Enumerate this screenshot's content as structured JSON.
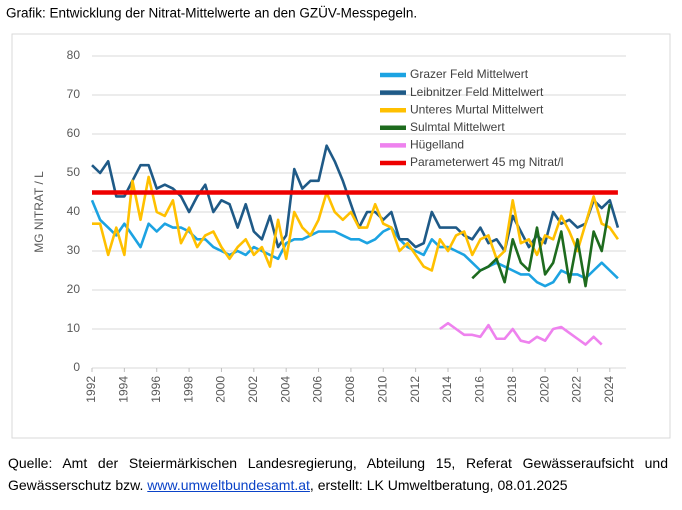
{
  "heading": "Grafik: Entwicklung der Nitrat-Mittelwerte an den GZÜV-Messpegeln.",
  "chart_data": {
    "type": "line",
    "ylabel": "MG NITRAT / L",
    "x": [
      1992,
      1992.5,
      1993,
      1993.5,
      1994,
      1994.5,
      1995,
      1995.5,
      1996,
      1996.5,
      1997,
      1997.5,
      1998,
      1998.5,
      1999,
      1999.5,
      2000,
      2000.5,
      2001,
      2001.5,
      2002,
      2002.5,
      2003,
      2003.5,
      2004,
      2004.5,
      2005,
      2005.5,
      2006,
      2006.5,
      2007,
      2007.5,
      2008,
      2008.5,
      2009,
      2009.5,
      2010,
      2010.5,
      2011,
      2011.5,
      2012,
      2012.5,
      2013,
      2013.5,
      2014,
      2014.5,
      2015,
      2015.5,
      2016,
      2016.5,
      2017,
      2017.5,
      2018,
      2018.5,
      2019,
      2019.5,
      2020,
      2020.5,
      2021,
      2021.5,
      2022,
      2022.5,
      2023,
      2023.5,
      2024,
      2024.5
    ],
    "xlim": [
      1992,
      2025
    ],
    "xticks": [
      1992,
      1994,
      1996,
      1998,
      2000,
      2002,
      2004,
      2006,
      2008,
      2010,
      2012,
      2014,
      2016,
      2018,
      2020,
      2022,
      2024
    ],
    "ylim": [
      0,
      80
    ],
    "yticks": [
      0,
      10,
      20,
      30,
      40,
      50,
      60,
      70,
      80
    ],
    "grid": true,
    "legend": "upper right",
    "series": [
      {
        "name": "Grazer Feld Mittelwert",
        "color": "#1ca3e2",
        "values": [
          43,
          38,
          36,
          34,
          37,
          34,
          31,
          37,
          35,
          37,
          36,
          36,
          35,
          33,
          33,
          31,
          30,
          29,
          30,
          29,
          31,
          30,
          29,
          28,
          32,
          33,
          33,
          34,
          35,
          35,
          35,
          34,
          33,
          33,
          32,
          33,
          35,
          36,
          33,
          31,
          30,
          29,
          33,
          31,
          31,
          30,
          29,
          27,
          25,
          26,
          27,
          26,
          25,
          24,
          24,
          22,
          21,
          22,
          25,
          24,
          24,
          23,
          25,
          27,
          25,
          23
        ]
      },
      {
        "name": "Leibnitzer Feld Mittelwert",
        "color": "#1f5a87",
        "values": [
          52,
          50,
          53,
          44,
          44,
          48,
          52,
          52,
          46,
          47,
          46,
          44,
          40,
          44,
          47,
          40,
          43,
          42,
          36,
          42,
          35,
          33,
          39,
          31,
          34,
          51,
          46,
          48,
          48,
          57,
          53,
          48,
          42,
          36,
          40,
          40,
          38,
          40,
          33,
          33,
          31,
          32,
          40,
          36,
          36,
          36,
          34,
          33,
          36,
          32,
          33,
          30,
          39,
          35,
          31,
          34,
          32,
          40,
          37,
          38,
          36,
          37,
          43,
          41,
          43,
          36
        ]
      },
      {
        "name": "Unteres Murtal Mittelwert",
        "color": "#ffc000",
        "values": [
          37,
          37,
          29,
          36,
          29,
          48,
          38,
          49,
          40,
          39,
          43,
          32,
          36,
          31,
          34,
          35,
          31,
          28,
          31,
          33,
          29,
          31,
          26,
          38,
          28,
          40,
          36,
          34,
          38,
          45,
          40,
          38,
          40,
          36,
          36,
          42,
          37,
          36,
          30,
          32,
          29,
          26,
          25,
          33,
          30,
          34,
          35,
          29,
          33,
          34,
          28,
          30,
          43,
          32,
          33,
          29,
          34,
          33,
          39,
          35,
          30,
          37,
          44,
          37,
          36,
          33
        ]
      },
      {
        "name": "Sulmtal Mittelwert",
        "color": "#1e6b1e",
        "values": [
          null,
          null,
          null,
          null,
          null,
          null,
          null,
          null,
          null,
          null,
          null,
          null,
          null,
          null,
          null,
          null,
          null,
          null,
          null,
          null,
          null,
          null,
          null,
          null,
          null,
          null,
          null,
          null,
          null,
          null,
          null,
          null,
          null,
          null,
          null,
          null,
          null,
          null,
          null,
          null,
          null,
          null,
          null,
          null,
          null,
          null,
          null,
          23,
          25,
          26,
          28,
          22,
          33,
          27,
          25,
          36,
          24,
          27,
          35,
          22,
          33,
          21,
          35,
          30,
          42,
          null
        ]
      },
      {
        "name": "Hügelland",
        "color": "#ee82ee",
        "values": [
          null,
          null,
          null,
          null,
          null,
          null,
          null,
          null,
          null,
          null,
          null,
          null,
          null,
          null,
          null,
          null,
          null,
          null,
          null,
          null,
          null,
          null,
          null,
          null,
          null,
          null,
          null,
          null,
          null,
          null,
          null,
          null,
          null,
          null,
          null,
          null,
          null,
          null,
          null,
          null,
          null,
          null,
          null,
          10,
          11.5,
          10,
          8.5,
          8.5,
          8,
          11,
          7.5,
          7.5,
          10,
          7,
          6.5,
          8,
          7,
          10,
          10.5,
          9,
          7.5,
          6,
          8,
          6,
          null,
          null
        ]
      },
      {
        "name": "Parameterwert 45 mg Nitrat/l",
        "color": "#ee0000",
        "values": [
          45,
          45,
          45,
          45,
          45,
          45,
          45,
          45,
          45,
          45,
          45,
          45,
          45,
          45,
          45,
          45,
          45,
          45,
          45,
          45,
          45,
          45,
          45,
          45,
          45,
          45,
          45,
          45,
          45,
          45,
          45,
          45,
          45,
          45,
          45,
          45,
          45,
          45,
          45,
          45,
          45,
          45,
          45,
          45,
          45,
          45,
          45,
          45,
          45,
          45,
          45,
          45,
          45,
          45,
          45,
          45,
          45,
          45,
          45,
          45,
          45,
          45,
          45,
          45,
          45,
          45
        ]
      }
    ]
  },
  "source": {
    "prefix": "Quelle: Amt der Steiermärkischen Landesregierung, Abteilung 15, Referat Gewässeraufsicht und Gewässerschutz bzw. ",
    "link": "www.umweltbundesamt.at",
    "suffix": ", erstellt: LK Umweltberatung, 08.01.2025"
  }
}
